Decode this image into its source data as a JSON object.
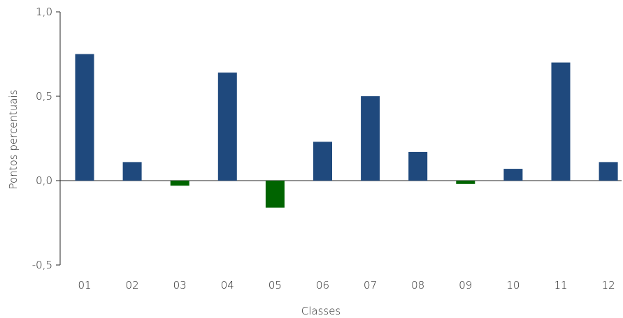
{
  "chart_data": {
    "type": "bar",
    "title": "",
    "xlabel": "Classes",
    "ylabel": "Pontos percentuais",
    "ylim": [
      -0.5,
      1.0
    ],
    "yticks": [
      {
        "value": -0.5,
        "label": "-0,5"
      },
      {
        "value": 0.0,
        "label": "0,0"
      },
      {
        "value": 0.5,
        "label": "0,5"
      },
      {
        "value": 1.0,
        "label": "1,0"
      }
    ],
    "categories": [
      "01",
      "02",
      "03",
      "04",
      "05",
      "06",
      "07",
      "08",
      "09",
      "10",
      "11",
      "12"
    ],
    "values": [
      0.75,
      0.11,
      -0.03,
      0.64,
      -0.16,
      0.23,
      0.5,
      0.17,
      -0.02,
      0.07,
      0.7,
      0.11
    ],
    "colors": {
      "positive": "#1f497d",
      "negative": "#006400",
      "axis": "#262626"
    },
    "grid": false,
    "legend": "none"
  }
}
